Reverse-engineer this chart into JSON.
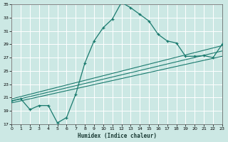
{
  "xlabel": "Humidex (Indice chaleur)",
  "bg_color": "#cce8e4",
  "grid_color": "#b0d8d2",
  "line_color": "#1a7a6e",
  "x_min": 0,
  "x_max": 23,
  "y_min": 17,
  "y_max": 35,
  "curve1_x": [
    0,
    1,
    2,
    3,
    4,
    5,
    6,
    7,
    8,
    9,
    10,
    11,
    12,
    13,
    14,
    15,
    16,
    17,
    18,
    19,
    20,
    21,
    22,
    23
  ],
  "curve1_y": [
    20.5,
    20.8,
    19.2,
    19.8,
    19.8,
    17.2,
    18.0,
    21.5,
    26.2,
    29.5,
    31.5,
    32.8,
    35.3,
    34.5,
    33.5,
    32.5,
    30.5,
    29.5,
    29.2,
    27.2,
    27.2,
    27.3,
    27.0,
    29.0
  ],
  "line1_x": [
    0,
    23
  ],
  "line1_y": [
    20.2,
    27.2
  ],
  "line2_x": [
    0,
    23
  ],
  "line2_y": [
    20.5,
    28.0
  ],
  "line3_x": [
    0,
    23
  ],
  "line3_y": [
    20.8,
    28.8
  ]
}
